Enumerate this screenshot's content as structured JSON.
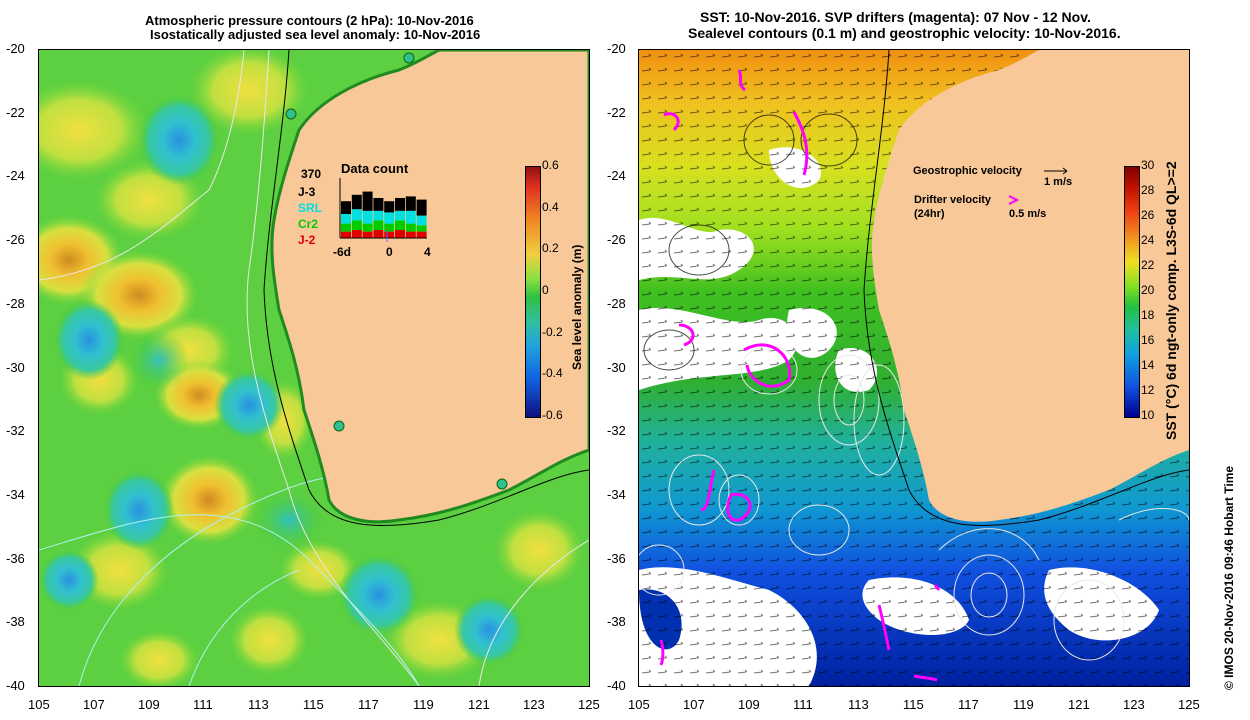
{
  "left_panel": {
    "title_line1": "Atmospheric pressure contours (2 hPa): 10-Nov-2016",
    "title_line2": "Isostatically adjusted sea level anomaly: 10-Nov-2016",
    "colorbar": {
      "label": "Sea level anomaly (m)",
      "ticks": [
        "0.6",
        "0.4",
        "0.2",
        "0",
        "-0.2",
        "-0.4",
        "-0.6"
      ]
    },
    "data_count": {
      "title": "Data count",
      "total": "370",
      "missions": [
        {
          "name": "J-3",
          "color": "#000000"
        },
        {
          "name": "SRL",
          "color": "#00e0e0"
        },
        {
          "name": "Cr2",
          "color": "#00cc00"
        },
        {
          "name": "J-2",
          "color": "#e00000"
        }
      ],
      "axis_labels": [
        "-6d",
        "0",
        "4"
      ]
    }
  },
  "right_panel": {
    "title_line1": "SST: 10-Nov-2016. SVP drifters (magenta): 07 Nov - 12 Nov.",
    "title_line2": "Sealevel contours (0.1 m) and geostrophic velocity: 10-Nov-2016.",
    "geostrophic_label": "Geostrophic velocity",
    "geostrophic_scale": "1 m/s",
    "drifter_label_line1": "Drifter velocity",
    "drifter_label_line2": "(24hr)",
    "drifter_scale": "0.5 m/s",
    "colorbar": {
      "label": "SST (°C) 6d ngt-only comp. L3S-6d QL>=2",
      "ticks": [
        "30",
        "28",
        "26",
        "24",
        "22",
        "20",
        "18",
        "16",
        "14",
        "12",
        "10"
      ]
    }
  },
  "axes": {
    "y_ticks": [
      "-20",
      "-22",
      "-24",
      "-26",
      "-28",
      "-30",
      "-32",
      "-34",
      "-36",
      "-38",
      "-40"
    ],
    "x_ticks": [
      "105",
      "107",
      "109",
      "111",
      "113",
      "115",
      "117",
      "119",
      "121",
      "123",
      "125"
    ]
  },
  "footer": "© IMOS 20-Nov-2016 09:46 Hobart Time",
  "colors": {
    "land": "#f8c898",
    "sla_background": "#44c844",
    "sst_warm": "#f0a020",
    "sst_cold": "#0030c0",
    "drifter": "#ff00ff"
  }
}
